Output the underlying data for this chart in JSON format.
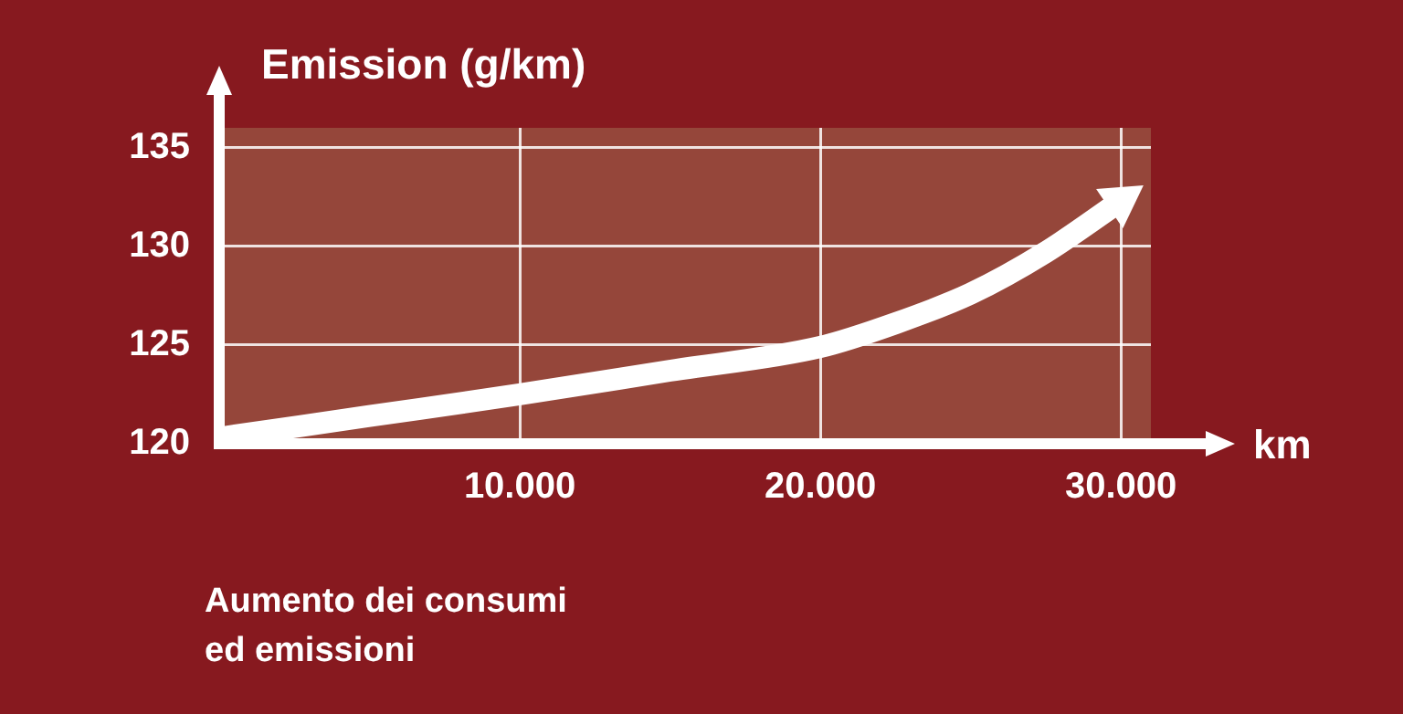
{
  "chart_data": {
    "type": "line",
    "xlabel": "km",
    "ylabel": "Emission (g/km)",
    "annotations": [
      "Aumento dei consumi\ned emissioni"
    ],
    "x": [
      0,
      5000,
      10000,
      15000,
      20000,
      22500,
      25000,
      27500,
      30000
    ],
    "series": [
      {
        "color": "#ffffff",
        "values": [
          120.3,
          121.4,
          122.5,
          123.7,
          124.9,
          126.1,
          127.6,
          129.7,
          132.3
        ]
      }
    ],
    "xlim": [
      0,
      31000
    ],
    "xticks": [
      {
        "value": 10000,
        "label": "10.000"
      },
      {
        "value": 20000,
        "label": "20.000"
      },
      {
        "value": 30000,
        "label": "30.000"
      }
    ],
    "ylim": [
      120,
      136
    ],
    "yticks": [
      120,
      125,
      130,
      135
    ],
    "grid": true,
    "legend": false,
    "line_style": "solid"
  }
}
